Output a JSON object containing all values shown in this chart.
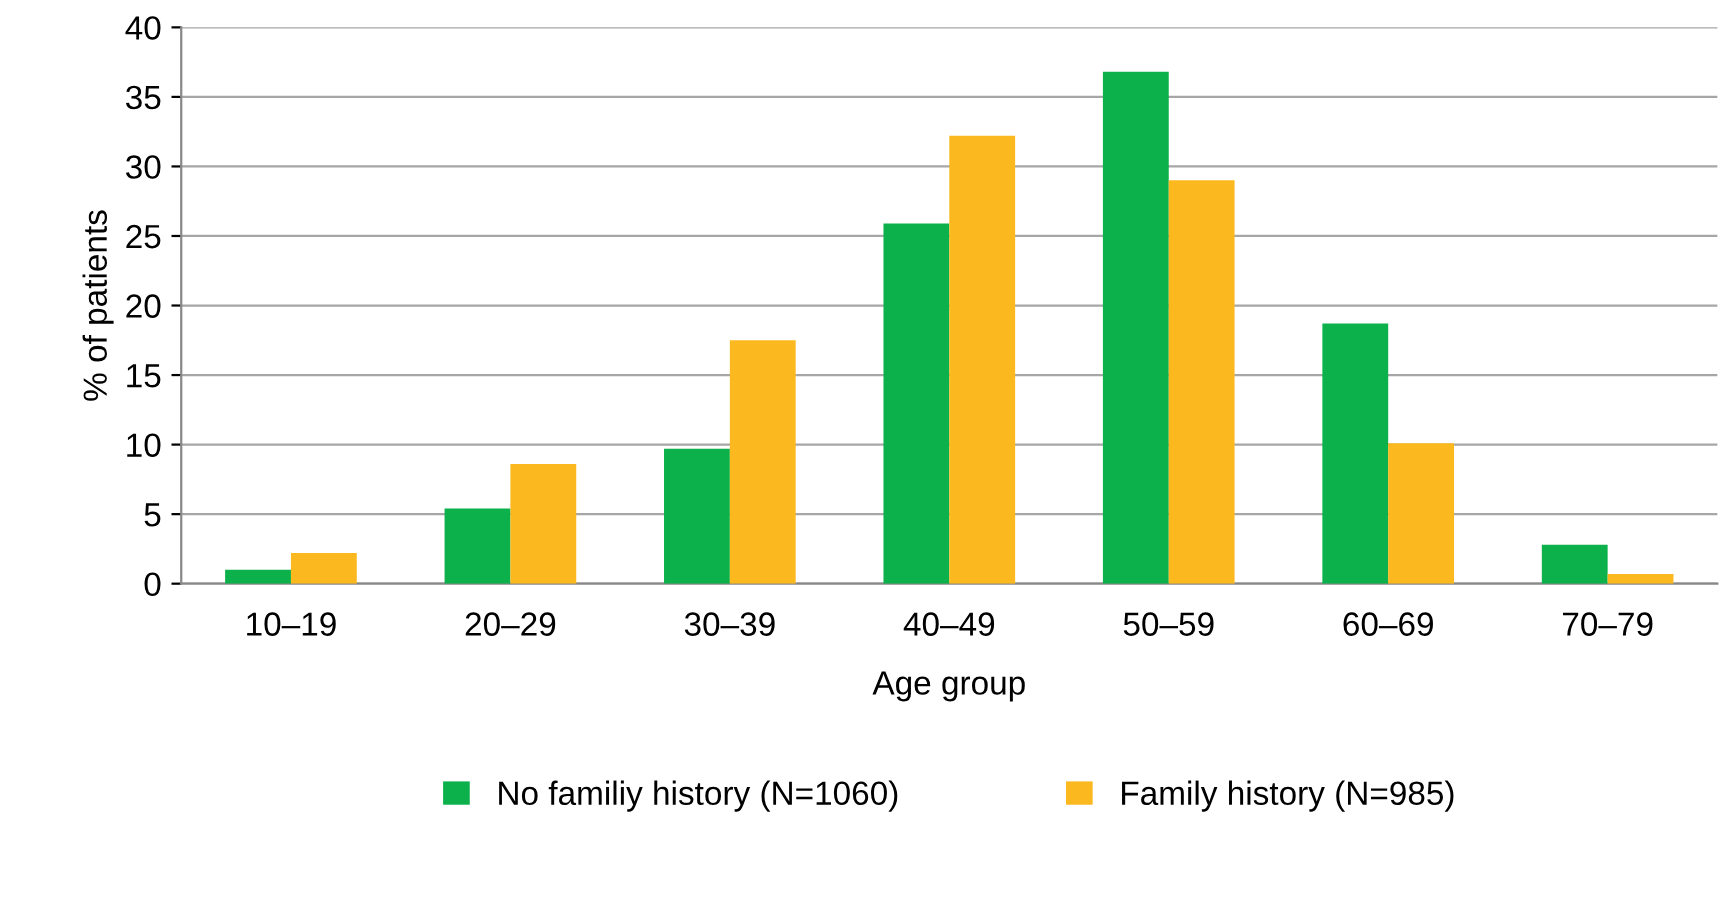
{
  "chart_data": {
    "type": "bar",
    "xlabel": "Age group",
    "ylabel": "% of patients",
    "categories": [
      "10–19",
      "20–29",
      "30–39",
      "40–49",
      "50–59",
      "60–69",
      "70–79"
    ],
    "series": [
      {
        "name": "No familiy history (N=1060)",
        "color": "#0db14b",
        "values": [
          1.0,
          5.4,
          9.7,
          25.9,
          36.8,
          18.7,
          2.8
        ]
      },
      {
        "name": "Family history (N=985)",
        "color": "#fbb81f",
        "values": [
          2.2,
          8.6,
          17.5,
          32.2,
          29.0,
          10.1,
          0.7
        ]
      }
    ],
    "ylim": [
      0,
      40
    ],
    "yticks": [
      0,
      5,
      10,
      15,
      20,
      25,
      30,
      35,
      40
    ],
    "grid": "y",
    "legend": "bottom"
  }
}
